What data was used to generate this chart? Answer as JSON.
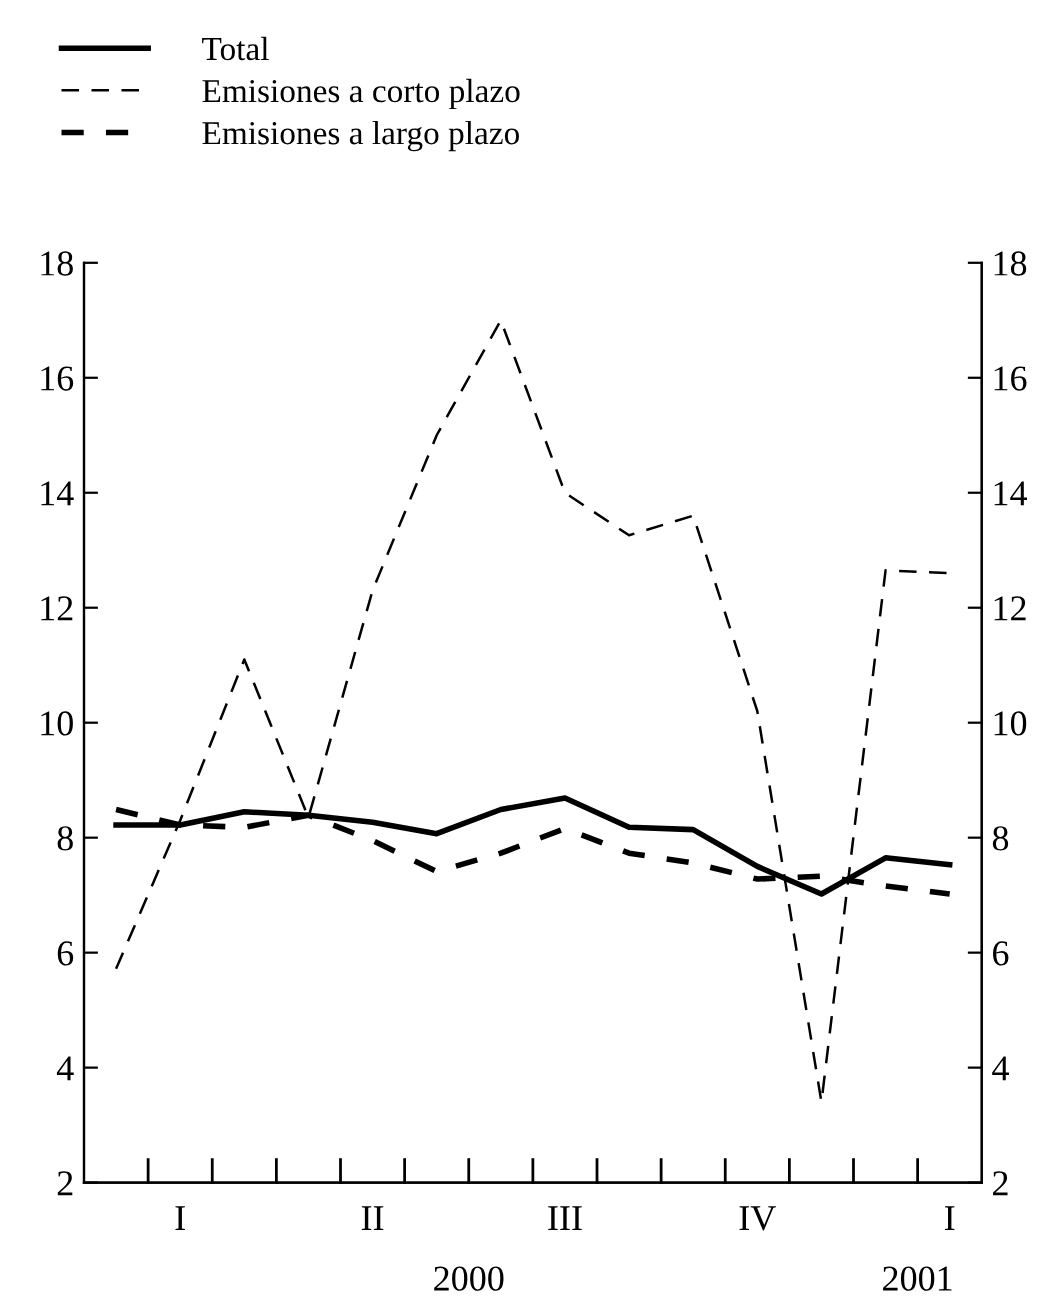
{
  "chart_data": {
    "type": "line",
    "categories": [
      null,
      "I",
      null,
      null,
      "II",
      null,
      null,
      "III",
      null,
      null,
      "IV",
      null,
      null,
      "I"
    ],
    "series": [
      {
        "name": "Total",
        "color": "#000000",
        "line_style": "solid",
        "values": [
          8.22,
          8.22,
          8.45,
          8.39,
          8.27,
          8.07,
          8.49,
          8.69,
          8.18,
          8.14,
          7.5,
          7.02,
          7.65,
          7.53
        ]
      },
      {
        "name": "Emisiones a corto plazo",
        "color": "#000000",
        "line_style": "dashed",
        "values": [
          5.72,
          8.3,
          11.1,
          8.35,
          12.3,
          15.0,
          17.0,
          14.0,
          13.26,
          13.6,
          10.2,
          3.4,
          12.65,
          12.6
        ]
      },
      {
        "name": "Emisiones a largo plazo",
        "color": "#000000",
        "line_style": "dashed",
        "values": [
          8.49,
          8.22,
          8.18,
          8.39,
          7.95,
          7.41,
          7.73,
          8.16,
          7.73,
          7.56,
          7.28,
          7.33,
          7.16,
          7.02
        ]
      }
    ],
    "annotations": [
      "2000",
      "2001"
    ],
    "ylim": [
      2,
      18
    ],
    "yticks": [
      2,
      4,
      6,
      8,
      10,
      12,
      14,
      16,
      18
    ],
    "y2lim": [
      2,
      18
    ],
    "y2ticks": [
      2,
      4,
      6,
      8,
      10,
      12,
      14,
      16,
      18
    ],
    "grid": false,
    "legend": "top left",
    "marker": "none"
  }
}
